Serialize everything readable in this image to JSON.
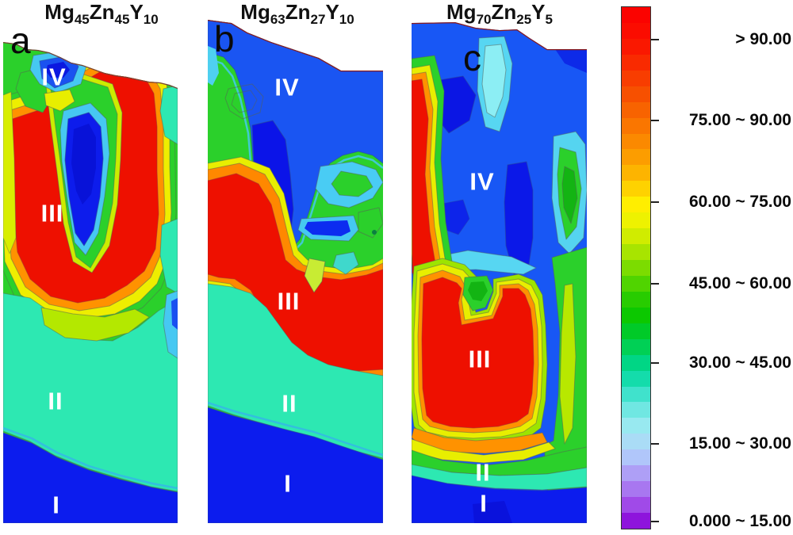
{
  "panels": [
    {
      "letter": "a",
      "formula": [
        [
          "Mg",
          "45"
        ],
        [
          "Zn",
          "45"
        ],
        [
          "Y",
          "10"
        ]
      ],
      "region_labels": [
        "IV",
        "III",
        "II",
        "I"
      ]
    },
    {
      "letter": "b",
      "formula": [
        [
          "Mg",
          "63"
        ],
        [
          "Zn",
          "27"
        ],
        [
          "Y",
          "10"
        ]
      ],
      "region_labels": [
        "IV",
        "III",
        "II",
        "I"
      ]
    },
    {
      "letter": "c",
      "formula": [
        [
          "Mg",
          "70"
        ],
        [
          "Zn",
          "25"
        ],
        [
          "Y",
          "5"
        ]
      ],
      "region_labels": [
        "IV",
        "III",
        "II",
        "I"
      ]
    }
  ],
  "legend": {
    "labels": [
      "> 90.00",
      "75.00 ~ 90.00",
      "60.00 ~ 75.00",
      "45.00 ~ 60.00",
      "30.00 ~ 45.00",
      "15.00 ~ 30.00",
      "0.000 ~ 15.00"
    ],
    "colors": [
      "#fb0300",
      "#fb0c00",
      "#fa1800",
      "#f92a00",
      "#f83d00",
      "#f75000",
      "#f86300",
      "#fa7600",
      "#fb8900",
      "#fc9d00",
      "#fdb400",
      "#fed200",
      "#ffee00",
      "#eef200",
      "#d0ec00",
      "#a8e400",
      "#7cdc00",
      "#50d400",
      "#28cc00",
      "#0cc800",
      "#00ca28",
      "#00d055",
      "#00d685",
      "#14dcab",
      "#40e2cc",
      "#70e7e2",
      "#98e9f0",
      "#aadcf6",
      "#b0c6fa",
      "#ae9ff6",
      "#a877f0",
      "#a04ae8",
      "#8e14dc"
    ]
  },
  "palette": {
    "base_green": "#2bd02b",
    "teal": "#2de8b2",
    "royal_blue": "#0c1cee",
    "medium_blue": "#1a55f2",
    "red": "#ee1000",
    "orange": "#ff9200",
    "yellow": "#e8ee00",
    "cyan": "#46c8f2",
    "violet": "#8e14dc"
  },
  "chart_data": {
    "type": "heatmap",
    "subtype": "filled-contour phase-fraction maps",
    "panels": [
      {
        "label": "a",
        "composition": "Mg45Zn45Y10",
        "region_annotations": [
          "IV",
          "III",
          "II",
          "I"
        ]
      },
      {
        "label": "b",
        "composition": "Mg63Zn27Y10",
        "region_annotations": [
          "IV",
          "III",
          "II",
          "I"
        ]
      },
      {
        "label": "c",
        "composition": "Mg70Zn25Y5",
        "region_annotations": [
          "IV",
          "III",
          "II",
          "I"
        ]
      }
    ],
    "colorbar": {
      "orientation": "vertical",
      "position": "right",
      "scale_min": 0,
      "scale_max": 90,
      "bins": [
        {
          "label": "> 90.00",
          "range": [
            90,
            null
          ]
        },
        {
          "label": "75.00 ~ 90.00",
          "range": [
            75,
            90
          ]
        },
        {
          "label": "60.00 ~ 75.00",
          "range": [
            60,
            75
          ]
        },
        {
          "label": "45.00 ~ 60.00",
          "range": [
            45,
            60
          ]
        },
        {
          "label": "30.00 ~ 45.00",
          "range": [
            30,
            45
          ]
        },
        {
          "label": "15.00 ~ 30.00",
          "range": [
            15,
            30
          ]
        },
        {
          "label": "0.000 ~ 15.00",
          "range": [
            0,
            15
          ]
        }
      ]
    }
  }
}
